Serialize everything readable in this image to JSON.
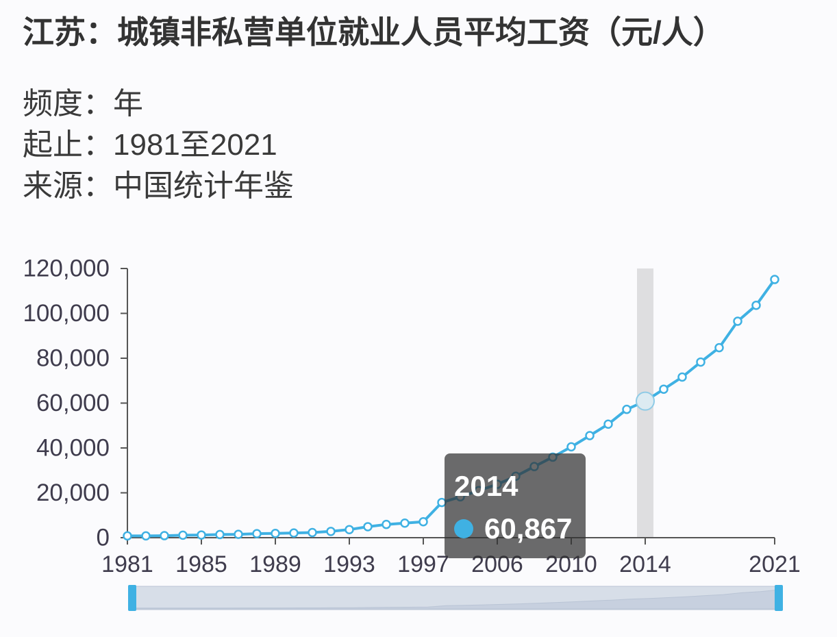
{
  "meta": {
    "frequency": {
      "label": "频度：",
      "value": "年"
    },
    "range": {
      "label": "起止：",
      "value": "1981至2021"
    },
    "source": {
      "label": "来源：",
      "value": "中国统计年鉴"
    }
  },
  "chart_data": {
    "type": "line",
    "title": "江苏：城镇非私营单位就业人员平均工资（元/人）",
    "x": [
      1981,
      1982,
      1983,
      1984,
      1985,
      1986,
      1987,
      1988,
      1989,
      1990,
      1991,
      1992,
      1993,
      1994,
      1995,
      1996,
      1997,
      2003,
      2004,
      2005,
      2006,
      2007,
      2008,
      2009,
      2010,
      2011,
      2012,
      2013,
      2014,
      2015,
      2016,
      2017,
      2018,
      2019,
      2020,
      2021
    ],
    "values": [
      800,
      800,
      900,
      1100,
      1200,
      1400,
      1500,
      1800,
      1900,
      2100,
      2300,
      2800,
      3600,
      4900,
      5900,
      6500,
      7100,
      15700,
      18200,
      21000,
      23800,
      27400,
      31700,
      35900,
      40500,
      45500,
      50600,
      57200,
      60867,
      66200,
      71600,
      78300,
      84700,
      96500,
      103600,
      115100
    ],
    "x_tick_labels": [
      "1981",
      "1985",
      "1989",
      "1993",
      "1997",
      "2006",
      "2010",
      "2014",
      "2021"
    ],
    "y_tick_labels": [
      "0",
      "20,000",
      "40,000",
      "60,000",
      "80,000",
      "100,000",
      "120,000"
    ],
    "ylim": [
      0,
      120000
    ],
    "grid": false,
    "tooltip": {
      "category": "2014",
      "value": "60,867"
    },
    "datazoom": {
      "start_percent": 0,
      "end_percent": 100
    },
    "colors": {
      "series": "#3fb1e3",
      "axis_pointer": "#dadadd",
      "datazoom_handle": "#3fb1e3"
    }
  }
}
